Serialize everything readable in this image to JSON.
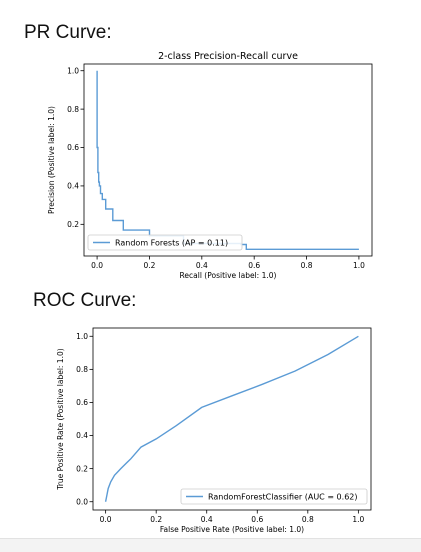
{
  "headings": {
    "pr": "PR Curve:",
    "roc": "ROC Curve:"
  },
  "colors": {
    "line": "#5b9bd5",
    "axis": "#000000",
    "legend_border": "#cccccc"
  },
  "chart_data": [
    {
      "type": "line",
      "title": "2-class Precision-Recall curve",
      "xlabel": "Recall (Positive label: 1.0)",
      "ylabel": "Precision (Positive label: 1.0)",
      "xlim": [
        -0.05,
        1.05
      ],
      "ylim": [
        0.035,
        1.035
      ],
      "xticks": [
        0.0,
        0.2,
        0.4,
        0.6,
        0.8,
        1.0
      ],
      "xtick_labels": [
        "0.0",
        "0.2",
        "0.4",
        "0.6",
        "0.8",
        "1.0"
      ],
      "yticks": [
        0.2,
        0.4,
        0.6,
        0.8,
        1.0
      ],
      "ytick_labels": [
        "0.2",
        "0.4",
        "0.6",
        "0.8",
        "1.0"
      ],
      "legend_placement": "lower-left",
      "grid": false,
      "series": [
        {
          "name": "Random Forests (AP = 0.11)",
          "drawstyle": "steps",
          "x": [
            0.0,
            0.0,
            0.003,
            0.003,
            0.006,
            0.006,
            0.009,
            0.009,
            0.013,
            0.013,
            0.02,
            0.02,
            0.033,
            0.033,
            0.06,
            0.06,
            0.1,
            0.1,
            0.2,
            0.2,
            0.33,
            0.33,
            0.55,
            0.55,
            0.57,
            0.57,
            1.0
          ],
          "y": [
            1.0,
            0.6,
            0.6,
            0.47,
            0.47,
            0.42,
            0.42,
            0.4,
            0.4,
            0.36,
            0.36,
            0.33,
            0.33,
            0.28,
            0.28,
            0.22,
            0.22,
            0.17,
            0.17,
            0.14,
            0.14,
            0.1,
            0.1,
            0.095,
            0.095,
            0.07,
            0.07
          ]
        }
      ]
    },
    {
      "type": "line",
      "title": "",
      "xlabel": "False Positive Rate (Positive label: 1.0)",
      "ylabel": "True Positive Rate (Positive label: 1.0)",
      "xlim": [
        -0.05,
        1.05
      ],
      "ylim": [
        -0.05,
        1.05
      ],
      "xticks": [
        0.0,
        0.2,
        0.4,
        0.6,
        0.8,
        1.0
      ],
      "xtick_labels": [
        "0.0",
        "0.2",
        "0.4",
        "0.6",
        "0.8",
        "1.0"
      ],
      "yticks": [
        0.0,
        0.2,
        0.4,
        0.6,
        0.8,
        1.0
      ],
      "ytick_labels": [
        "0.0",
        "0.2",
        "0.4",
        "0.6",
        "0.8",
        "1.0"
      ],
      "legend_placement": "lower-right",
      "grid": false,
      "series": [
        {
          "name": "RandomForestClassifier (AUC = 0.62)",
          "x": [
            0.0,
            0.005,
            0.01,
            0.02,
            0.035,
            0.06,
            0.1,
            0.14,
            0.2,
            0.28,
            0.38,
            0.5,
            0.62,
            0.75,
            0.88,
            1.0
          ],
          "y": [
            0.0,
            0.04,
            0.08,
            0.12,
            0.16,
            0.2,
            0.26,
            0.33,
            0.38,
            0.46,
            0.57,
            0.64,
            0.71,
            0.79,
            0.89,
            1.0
          ]
        }
      ]
    }
  ]
}
